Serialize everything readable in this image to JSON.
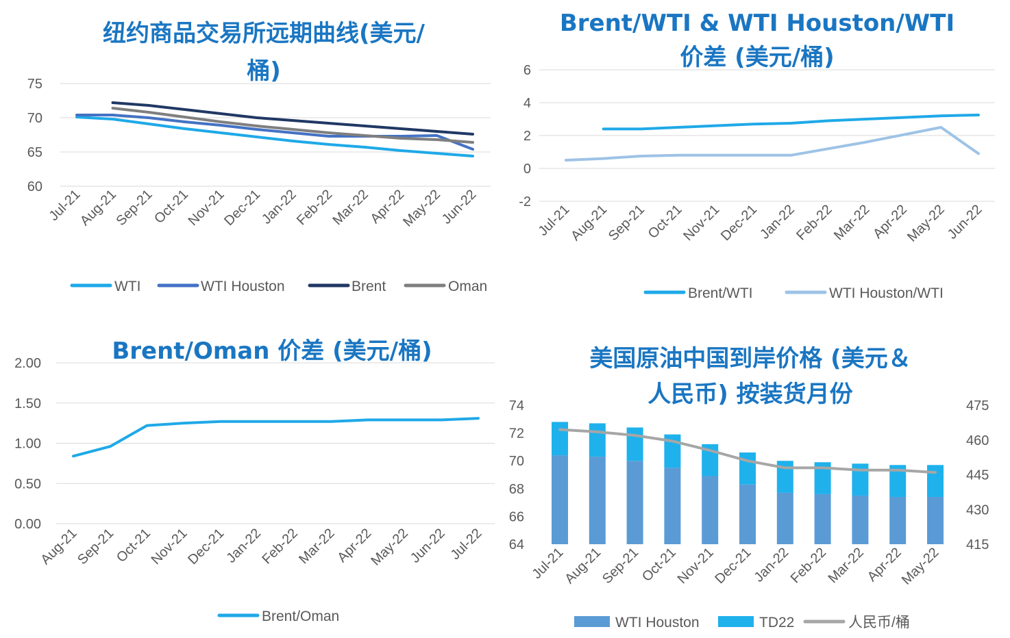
{
  "chart_data": [
    {
      "id": "c1",
      "type": "line",
      "title": "纽约商品交易所远期曲线(美元/桶)",
      "title_lines": [
        "纽约商品交易所远期曲线(美元/",
        "桶)"
      ],
      "categories": [
        "Jul-21",
        "Aug-21",
        "Sep-21",
        "Oct-21",
        "Nov-21",
        "Dec-21",
        "Jan-22",
        "Feb-22",
        "Mar-22",
        "Apr-22",
        "May-22",
        "Jun-22"
      ],
      "ylim": [
        60,
        75
      ],
      "yticks": [
        "75",
        "70",
        "65",
        "60"
      ],
      "ytick_values": [
        75,
        70,
        65,
        60
      ],
      "legend_position": "bottom",
      "grid": true,
      "series": [
        {
          "name": "WTI",
          "color": "#1fa9e8",
          "values": [
            70.1,
            69.8,
            69.1,
            68.4,
            67.8,
            67.2,
            66.6,
            66.1,
            65.7,
            65.2,
            64.8,
            64.4
          ]
        },
        {
          "name": "WTI Houston",
          "color": "#4472c4",
          "values": [
            70.4,
            70.4,
            70.0,
            69.4,
            68.9,
            68.3,
            67.8,
            67.3,
            67.3,
            67.3,
            67.4,
            65.4
          ]
        },
        {
          "name": "Brent",
          "color": "#203864",
          "values": [
            null,
            72.2,
            71.8,
            71.2,
            70.6,
            70.0,
            69.6,
            69.2,
            68.8,
            68.4,
            68.0,
            67.6
          ]
        },
        {
          "name": "Oman",
          "color": "#7f7f7f",
          "values": [
            null,
            71.4,
            70.8,
            70.1,
            69.4,
            68.8,
            68.3,
            67.8,
            67.4,
            67.0,
            66.8,
            66.4
          ]
        }
      ]
    },
    {
      "id": "c2",
      "type": "line",
      "title": "Brent/WTI & WTI Houston/WTI 价差 (美元/桶)",
      "title_lines": [
        "Brent/WTI & WTI Houston/WTI",
        "价差 (美元/桶)"
      ],
      "categories": [
        "Jul-21",
        "Aug-21",
        "Sep-21",
        "Oct-21",
        "Nov-21",
        "Dec-21",
        "Jan-22",
        "Feb-22",
        "Mar-22",
        "Apr-22",
        "May-22",
        "Jun-22"
      ],
      "ylim": [
        -2,
        6
      ],
      "yticks": [
        "6",
        "4",
        "2",
        "0",
        "-2"
      ],
      "ytick_values": [
        6,
        4,
        2,
        0,
        -2
      ],
      "legend_position": "bottom",
      "grid": true,
      "series": [
        {
          "name": "Brent/WTI",
          "color": "#1fa9e8",
          "values": [
            null,
            2.4,
            2.4,
            2.5,
            2.6,
            2.7,
            2.75,
            2.9,
            3.0,
            3.1,
            3.2,
            3.25
          ]
        },
        {
          "name": "WTI Houston/WTI",
          "color": "#9dc3e6",
          "values": [
            0.5,
            0.6,
            0.75,
            0.8,
            0.8,
            0.8,
            0.8,
            1.2,
            1.6,
            2.05,
            2.5,
            0.9
          ]
        }
      ]
    },
    {
      "id": "c3",
      "type": "line",
      "title": "Brent/Oman 价差 (美元/桶)",
      "title_lines": [
        "Brent/Oman 价差 (美元/桶)"
      ],
      "categories": [
        "Aug-21",
        "Sep-21",
        "Oct-21",
        "Nov-21",
        "Dec-21",
        "Jan-22",
        "Feb-22",
        "Mar-22",
        "Apr-22",
        "May-22",
        "Jun-22",
        "Jul-22"
      ],
      "ylim": [
        0,
        2
      ],
      "yticks": [
        "2.00",
        "1.50",
        "1.00",
        "0.50",
        "0.00"
      ],
      "ytick_values": [
        2,
        1.5,
        1,
        0.5,
        0
      ],
      "legend_position": "bottom",
      "grid": true,
      "series": [
        {
          "name": "Brent/Oman",
          "color": "#1fa9e8",
          "values": [
            0.84,
            0.96,
            1.22,
            1.25,
            1.27,
            1.27,
            1.27,
            1.27,
            1.29,
            1.29,
            1.29,
            1.31
          ]
        }
      ]
    },
    {
      "id": "c4",
      "type": "bar",
      "title": "美国原油中国到岸价格 (美元&人民币) 按装货月份",
      "title_lines": [
        "美国原油中国到岸价格 (美元＆",
        "人民币) 按装货月份"
      ],
      "categories": [
        "Jul-21",
        "Aug-21",
        "Sep-21",
        "Oct-21",
        "Nov-21",
        "Dec-21",
        "Jan-22",
        "Feb-22",
        "Mar-22",
        "Apr-22",
        "May-22"
      ],
      "ylim": [
        64,
        74
      ],
      "yticks": [
        "74",
        "72",
        "70",
        "68",
        "66",
        "64"
      ],
      "ytick_values": [
        74,
        72,
        70,
        68,
        66,
        64
      ],
      "y2lim": [
        415,
        475
      ],
      "y2ticks": [
        "475",
        "460",
        "445",
        "430",
        "415"
      ],
      "y2tick_values": [
        475,
        460,
        445,
        430,
        415
      ],
      "legend_position": "bottom",
      "grid": false,
      "stacked": true,
      "series": [
        {
          "name": "WTI Houston",
          "type": "bar",
          "color": "#5b9bd5",
          "values": [
            70.4,
            70.3,
            70.0,
            69.5,
            68.9,
            68.3,
            67.7,
            67.6,
            67.5,
            67.4,
            67.4
          ]
        },
        {
          "name": "TD22",
          "type": "bar",
          "color": "#1fb1ec",
          "values": [
            2.4,
            2.4,
            2.4,
            2.4,
            2.3,
            2.3,
            2.3,
            2.3,
            2.3,
            2.3,
            2.3
          ]
        },
        {
          "name": "人民币/桶",
          "type": "line",
          "axis": "right",
          "color": "#a6a6a6",
          "values": [
            464.5,
            463.5,
            462,
            459.5,
            455.5,
            451,
            448,
            448,
            447,
            447,
            446
          ]
        }
      ]
    }
  ]
}
